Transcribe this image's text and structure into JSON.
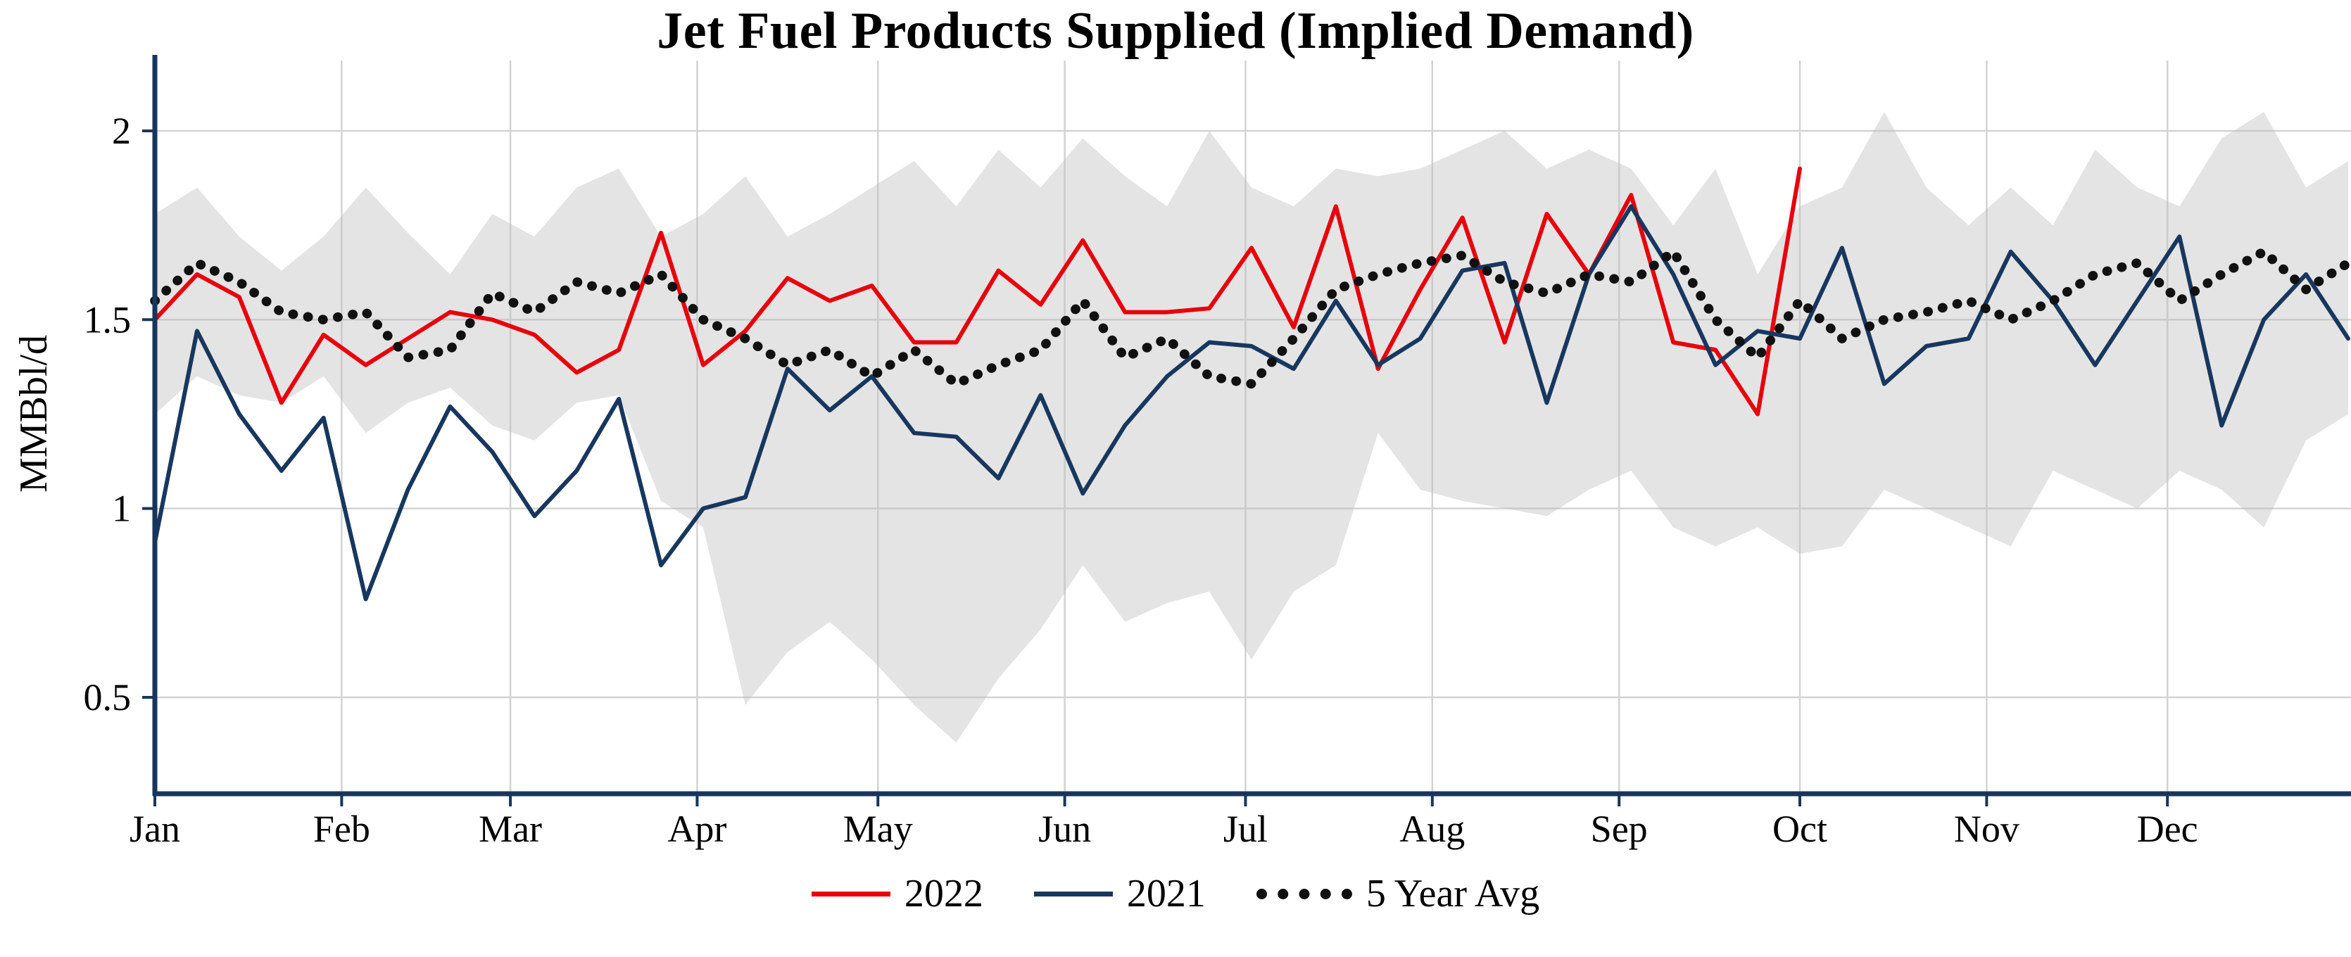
{
  "chart_data": {
    "type": "line",
    "title": "Jet Fuel Products Supplied (Implied Demand)",
    "xlabel": "",
    "ylabel": "MMBbl/d",
    "x_unit": "weekly",
    "x_tick_labels": [
      "Jan",
      "Feb",
      "Mar",
      "Apr",
      "May",
      "Jun",
      "Jul",
      "Aug",
      "Sep",
      "Oct",
      "Nov",
      "Dec"
    ],
    "month_start_days": [
      0,
      31,
      59,
      90,
      120,
      151,
      181,
      212,
      243,
      273,
      304,
      334
    ],
    "weeks_total": 53,
    "y_ticks": [
      0.5,
      1,
      1.5,
      2
    ],
    "y_tick_labels": [
      "0.5",
      "1",
      "1.5",
      "2"
    ],
    "ylim": [
      0.24,
      2.19
    ],
    "grid": true,
    "legend_position": "bottom",
    "axis_color": "#17365d",
    "grid_color": "#d3d3d3",
    "band": {
      "name": "5-year-range",
      "fill": "#bfbfbf",
      "opacity": 0.42,
      "max": [
        1.78,
        1.85,
        1.72,
        1.63,
        1.72,
        1.85,
        1.73,
        1.62,
        1.78,
        1.72,
        1.85,
        1.9,
        1.72,
        1.78,
        1.88,
        1.72,
        1.78,
        1.85,
        1.92,
        1.8,
        1.95,
        1.85,
        1.98,
        1.88,
        1.8,
        2.0,
        1.85,
        1.8,
        1.9,
        1.88,
        1.9,
        1.95,
        2.0,
        1.9,
        1.95,
        1.9,
        1.75,
        1.9,
        1.62,
        1.8,
        1.85,
        2.05,
        1.85,
        1.75,
        1.85,
        1.75,
        1.95,
        1.85,
        1.8,
        1.98,
        2.05,
        1.85,
        1.92
      ],
      "min": [
        1.25,
        1.35,
        1.3,
        1.28,
        1.35,
        1.2,
        1.28,
        1.32,
        1.22,
        1.18,
        1.28,
        1.3,
        1.02,
        0.95,
        0.48,
        0.62,
        0.7,
        0.6,
        0.48,
        0.38,
        0.55,
        0.68,
        0.85,
        0.7,
        0.75,
        0.78,
        0.6,
        0.78,
        0.85,
        1.2,
        1.05,
        1.02,
        1.0,
        0.98,
        1.05,
        1.1,
        0.95,
        0.9,
        0.95,
        0.88,
        0.9,
        1.05,
        1.0,
        0.95,
        0.9,
        1.1,
        1.05,
        1.0,
        1.1,
        1.05,
        0.95,
        1.18,
        1.25
      ]
    },
    "series": [
      {
        "name": "2022",
        "color": "#e8000b",
        "style": "solid",
        "values": [
          1.5,
          1.62,
          1.56,
          1.28,
          1.46,
          1.38,
          1.45,
          1.52,
          1.5,
          1.46,
          1.36,
          1.42,
          1.73,
          1.38,
          1.47,
          1.61,
          1.55,
          1.59,
          1.44,
          1.44,
          1.63,
          1.54,
          1.71,
          1.52,
          1.52,
          1.53,
          1.69,
          1.48,
          1.8,
          1.37,
          1.58,
          1.77,
          1.44,
          1.78,
          1.62,
          1.83,
          1.44,
          1.42,
          1.25,
          1.9
        ]
      },
      {
        "name": "2021",
        "color": "#17375e",
        "style": "solid",
        "values": [
          0.91,
          1.47,
          1.25,
          1.1,
          1.24,
          0.76,
          1.05,
          1.27,
          1.15,
          0.98,
          1.1,
          1.29,
          0.85,
          1.0,
          1.03,
          1.37,
          1.26,
          1.35,
          1.2,
          1.19,
          1.08,
          1.3,
          1.04,
          1.22,
          1.35,
          1.44,
          1.43,
          1.37,
          1.55,
          1.38,
          1.45,
          1.63,
          1.65,
          1.28,
          1.62,
          1.8,
          1.62,
          1.38,
          1.47,
          1.45,
          1.69,
          1.33,
          1.43,
          1.45,
          1.68,
          1.55,
          1.38,
          1.55,
          1.72,
          1.22,
          1.5,
          1.62,
          1.45
        ]
      },
      {
        "name": "5 Year Avg",
        "color": "#111111",
        "style": "dotted",
        "values": [
          1.55,
          1.65,
          1.6,
          1.52,
          1.5,
          1.52,
          1.4,
          1.42,
          1.57,
          1.52,
          1.6,
          1.57,
          1.62,
          1.5,
          1.45,
          1.38,
          1.42,
          1.35,
          1.42,
          1.33,
          1.38,
          1.42,
          1.55,
          1.4,
          1.45,
          1.35,
          1.33,
          1.45,
          1.58,
          1.62,
          1.65,
          1.67,
          1.6,
          1.57,
          1.62,
          1.6,
          1.68,
          1.5,
          1.4,
          1.55,
          1.45,
          1.5,
          1.52,
          1.55,
          1.5,
          1.55,
          1.62,
          1.65,
          1.55,
          1.62,
          1.68,
          1.58,
          1.65
        ]
      }
    ]
  }
}
